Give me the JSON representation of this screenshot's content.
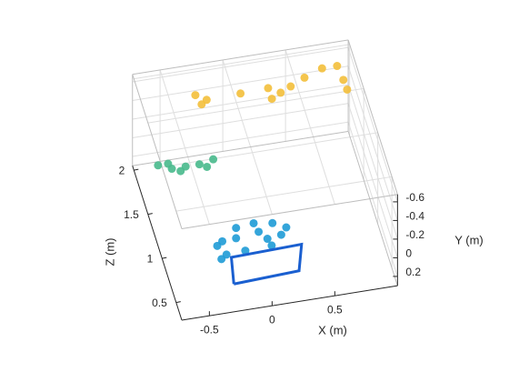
{
  "chart_data": {
    "type": "scatter3",
    "xlabel": "X (m)",
    "ylabel": "Y (m)",
    "zlabel": "Z (m)",
    "xlim": [
      -0.72,
      1.0
    ],
    "ylim": [
      -0.68,
      0.3
    ],
    "zlim": [
      0.3,
      2.05
    ],
    "xticks": [
      -0.5,
      0,
      0.5
    ],
    "yticks": [
      -0.6,
      -0.4,
      -0.2,
      0,
      0.2
    ],
    "zticks": [
      0.5,
      1,
      1.5,
      2
    ],
    "grid": true,
    "series": [
      {
        "color": "#f3bf3b",
        "x": [
          -0.23,
          -0.18,
          -0.14,
          0.13,
          0.35,
          0.38,
          0.53,
          0.64,
          0.78,
          0.9,
          0.95,
          0.98,
          0.45
        ],
        "y": [
          -0.4,
          -0.29,
          -0.33,
          -0.34,
          -0.35,
          -0.23,
          -0.33,
          -0.4,
          -0.47,
          -0.47,
          -0.31,
          -0.2,
          -0.28
        ],
        "z": [
          2,
          2,
          2,
          2,
          2,
          2,
          2,
          2,
          2,
          2,
          2,
          2,
          2
        ]
      },
      {
        "color": "#48b98c",
        "x": [
          -0.55,
          -0.44,
          -0.33,
          -0.22,
          -0.11,
          -0.37,
          -0.16,
          -0.47
        ],
        "y": [
          0.19,
          0.25,
          0.25,
          0.25,
          0.22,
          0.29,
          0.29,
          0.19
        ],
        "z": [
          1.9,
          1.9,
          1.9,
          1.9,
          1.9,
          1.9,
          1.9,
          1.9
        ]
      },
      {
        "color": "#1e9bd6",
        "x": [
          -0.24,
          -0.13,
          0.01,
          0.16,
          0.27,
          0.12,
          0.23,
          -0.13,
          0.05,
          -0.28,
          -0.24,
          -0.09,
          -0.28,
          0.12
        ],
        "y": [
          0.22,
          0.1,
          0.08,
          0.11,
          0.18,
          0.27,
          0.25,
          0.21,
          0.18,
          0.26,
          0.22,
          0.21,
          0.26,
          0.2
        ],
        "z": [
          1,
          1,
          1,
          1,
          1,
          1,
          1,
          1,
          1,
          1,
          0.85,
          0.85,
          0.85,
          0.85
        ]
      },
      {
        "color": "#1a5fd0",
        "mode": "lines",
        "x": [
          -0.26,
          0.26,
          0.28,
          -0.28,
          -0.26
        ],
        "y": [
          0.2,
          0.17,
          -0.11,
          -0.09,
          0.2
        ],
        "z": [
          0.5,
          0.5,
          0.5,
          0.5,
          0.5
        ]
      }
    ]
  }
}
